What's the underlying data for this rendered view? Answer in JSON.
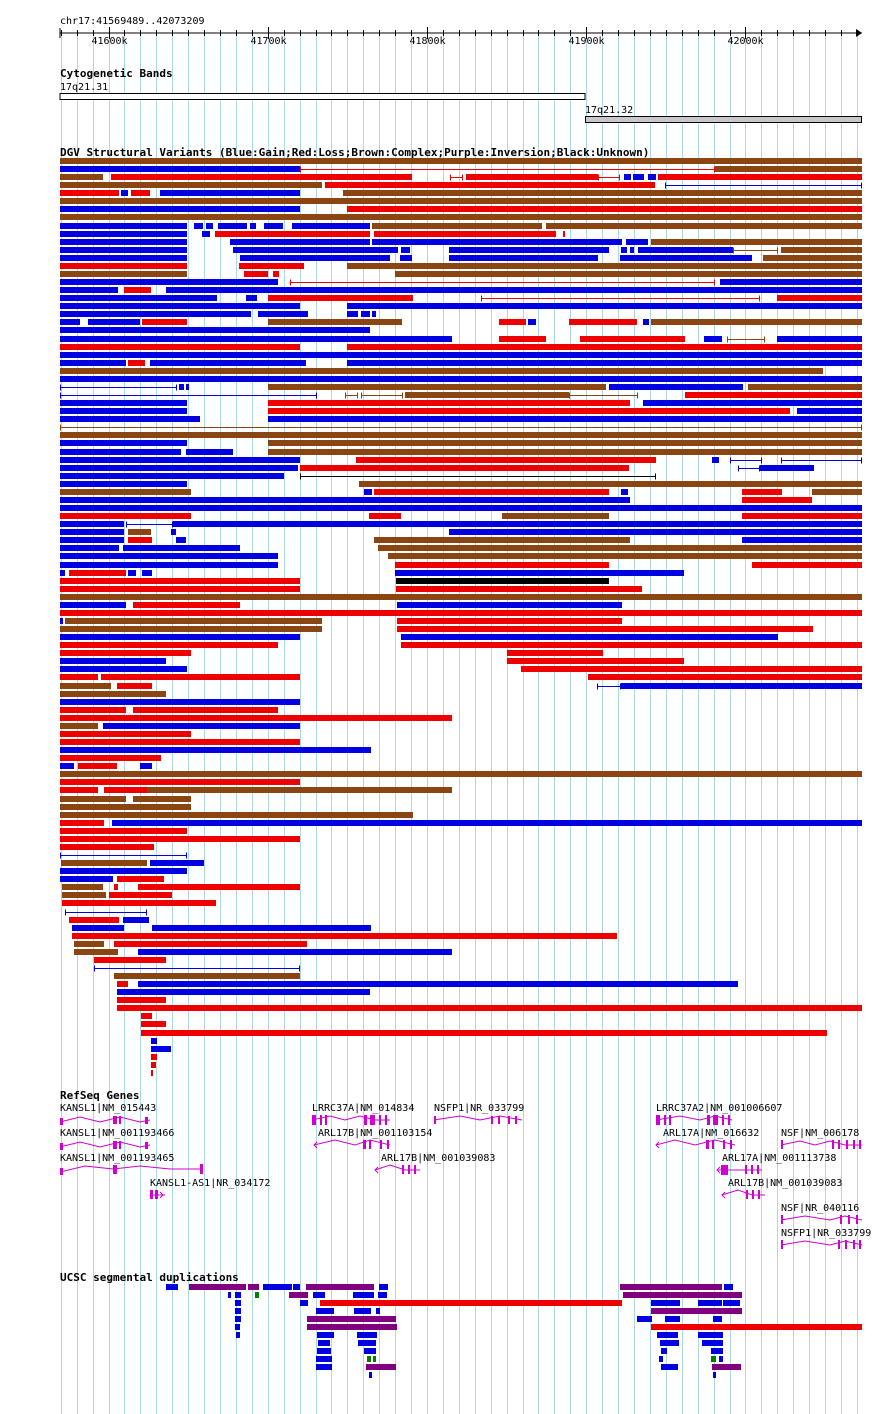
{
  "region": "chr17:41569489..42073209",
  "ruler": {
    "start": 41569489,
    "end": 42073209,
    "ticks": [
      {
        "pos": 41600000,
        "label": "41600k"
      },
      {
        "pos": 41700000,
        "label": "41700k"
      },
      {
        "pos": 41800000,
        "label": "41800k"
      },
      {
        "pos": 41900000,
        "label": "41900k"
      },
      {
        "pos": 42000000,
        "label": "42000k"
      }
    ]
  },
  "colors": {
    "gain": "#0000e0",
    "loss": "#ee0000",
    "complex": "#8b4513",
    "inversion": "#800080",
    "unknown": "#000000",
    "gene": "#d000d0",
    "grid": "#add8e6"
  },
  "tracks": {
    "cytoband": {
      "title": "Cytogenetic Bands",
      "bands": [
        {
          "name": "17q21.31",
          "start": 41569489,
          "end": 41900000,
          "stain": "gneg"
        },
        {
          "name": "17q21.32",
          "start": 41900000,
          "end": 42073209,
          "stain": "gpos25"
        }
      ]
    },
    "dgv": {
      "title": "DGV Structural Variants (Blue:Gain;Red:Loss;Brown:Complex;Purple:Inversion;Black:Unknown)"
    },
    "refseq": {
      "title": "RefSeq Genes",
      "genes": [
        {
          "label": "KANSL1|NM_015443",
          "start": 41569489,
          "end": 41628000,
          "strand": "-"
        },
        {
          "label": "KANSL1|NM_001193466",
          "start": 41569489,
          "end": 41628000,
          "strand": "-"
        },
        {
          "label": "KANSL1|NM_001193465",
          "start": 41569489,
          "end": 41660000,
          "strand": "-"
        },
        {
          "label": "KANSL1-AS1|NR_034172",
          "start": 41627000,
          "end": 41634000,
          "strand": "+"
        },
        {
          "label": "LRRC37A|NM_014834",
          "start": 41726000,
          "end": 41777000,
          "strand": "+"
        },
        {
          "label": "ARL17B|NM_001103154",
          "start": 41727000,
          "end": 41777000,
          "strand": "-"
        },
        {
          "label": "ARL17B|NM_001039083",
          "start": 41768000,
          "end": 41793000,
          "strand": "-"
        },
        {
          "label": "NSFP1|NR_033799",
          "start": 41807000,
          "end": 41852000,
          "strand": "+"
        },
        {
          "label": "LRRC37A2|NM_001006607",
          "start": 41946000,
          "end": 41993000,
          "strand": "+"
        },
        {
          "label": "ARL17A|NM_016632",
          "start": 41946000,
          "end": 41995000,
          "strand": "-"
        },
        {
          "label": "ARL17A|NM_001113738",
          "start": 41987000,
          "end": 42013000,
          "strand": "-"
        },
        {
          "label": "ARL17B|NM_001039083",
          "start": 41987000,
          "end": 42013000,
          "strand": "-"
        },
        {
          "label": "NSF|NM_006178",
          "start": 42020000,
          "end": 42073209,
          "strand": "+"
        },
        {
          "label": "NSF|NR_040116",
          "start": 42020000,
          "end": 42073209,
          "strand": "+"
        },
        {
          "label": "NSFP1|NR_033799",
          "start": 42020000,
          "end": 42073209,
          "strand": "+"
        }
      ]
    },
    "segdup": {
      "title": "UCSC segmental duplications"
    }
  }
}
